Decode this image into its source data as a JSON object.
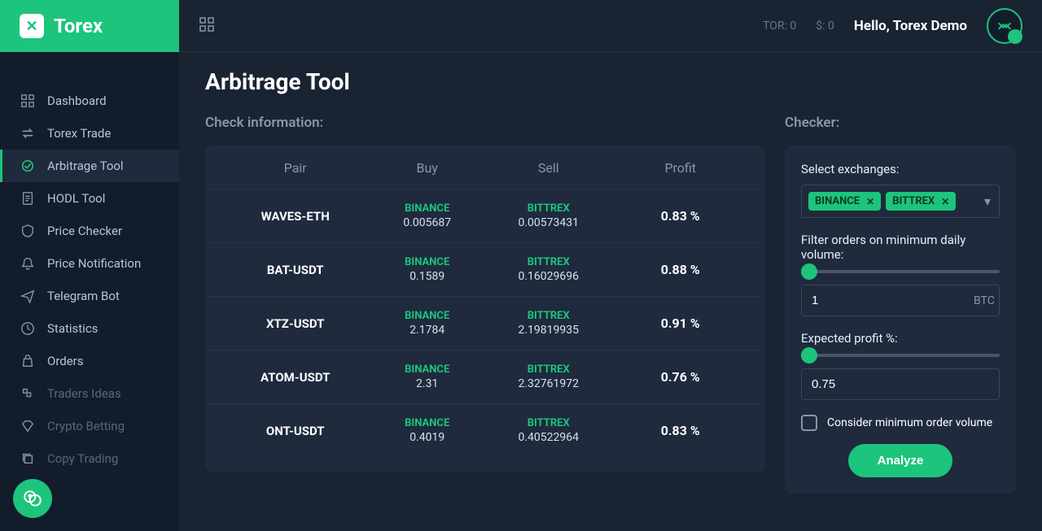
{
  "brand": {
    "name": "Torex",
    "logo_letter": "✕"
  },
  "nav": [
    {
      "label": "Dashboard",
      "icon": "grid"
    },
    {
      "label": "Torex Trade",
      "icon": "swap"
    },
    {
      "label": "Arbitrage Tool",
      "icon": "arbitrage",
      "active": true
    },
    {
      "label": "HODL Tool",
      "icon": "doc"
    },
    {
      "label": "Price Checker",
      "icon": "shield"
    },
    {
      "label": "Price Notification",
      "icon": "bell"
    },
    {
      "label": "Telegram Bot",
      "icon": "send"
    },
    {
      "label": "Statistics",
      "icon": "clock"
    },
    {
      "label": "Orders",
      "icon": "bag"
    },
    {
      "label": "Traders Ideas",
      "icon": "puzzle",
      "muted": true
    },
    {
      "label": "Crypto Betting",
      "icon": "diamond",
      "muted": true
    },
    {
      "label": "Copy Trading",
      "icon": "copy",
      "muted": true
    }
  ],
  "header": {
    "tor_balance": "TOR: 0",
    "usd_balance": "$: 0",
    "greeting": "Hello, Torex Demo"
  },
  "page": {
    "title": "Arbitrage Tool",
    "check_label": "Check information:",
    "checker_label": "Checker:"
  },
  "table": {
    "columns": {
      "pair": "Pair",
      "buy": "Buy",
      "sell": "Sell",
      "profit": "Profit"
    },
    "rows": [
      {
        "pair": "WAVES-ETH",
        "buy_ex": "BINANCE",
        "buy_val": "0.005687",
        "sell_ex": "BITTREX",
        "sell_val": "0.00573431",
        "profit": "0.83 %"
      },
      {
        "pair": "BAT-USDT",
        "buy_ex": "BINANCE",
        "buy_val": "0.1589",
        "sell_ex": "BITTREX",
        "sell_val": "0.16029696",
        "profit": "0.88 %"
      },
      {
        "pair": "XTZ-USDT",
        "buy_ex": "BINANCE",
        "buy_val": "2.1784",
        "sell_ex": "BITTREX",
        "sell_val": "2.19819935",
        "profit": "0.91 %"
      },
      {
        "pair": "ATOM-USDT",
        "buy_ex": "BINANCE",
        "buy_val": "2.31",
        "sell_ex": "BITTREX",
        "sell_val": "2.32761972",
        "profit": "0.76 %"
      },
      {
        "pair": "ONT-USDT",
        "buy_ex": "BINANCE",
        "buy_val": "0.4019",
        "sell_ex": "BITTREX",
        "sell_val": "0.40522964",
        "profit": "0.83 %"
      }
    ]
  },
  "checker": {
    "select_label": "Select exchanges:",
    "exchanges": [
      "BINANCE",
      "BITTREX"
    ],
    "volume_label": "Filter orders on minimum daily volume:",
    "volume_value": "1",
    "volume_unit": "BTC",
    "profit_label": "Expected profit %:",
    "profit_value": "0.75",
    "checkbox_label": "Consider minimum order volume",
    "analyze_label": "Analyze"
  },
  "colors": {
    "primary": "#1cc47c",
    "bg": "#1a2332",
    "sidebar_bg": "#131c2b",
    "panel_bg": "#1f2a3d",
    "border": "#2a3448",
    "text_muted": "#8a96a8"
  }
}
